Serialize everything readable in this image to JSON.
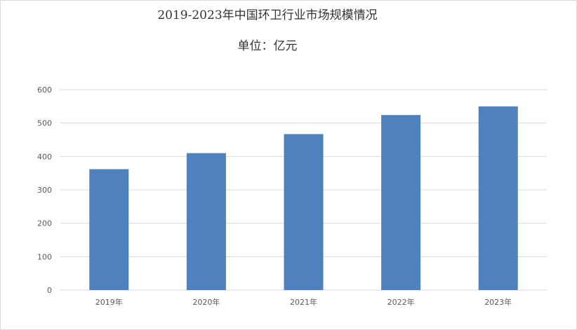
{
  "chart_data": {
    "type": "bar",
    "title": "2019-2023年中国环卫行业市场规模情况",
    "subtitle": "单位：亿元",
    "categories": [
      "2019年",
      "2020年",
      "2021年",
      "2022年",
      "2023年"
    ],
    "values": [
      362,
      410,
      467,
      524,
      550
    ],
    "ylim": [
      0,
      600
    ],
    "yticks": [
      0,
      100,
      200,
      300,
      400,
      500,
      600
    ],
    "grid": true,
    "bar_color": "#4e81bd",
    "gridline_color": "#d9d9d9"
  }
}
